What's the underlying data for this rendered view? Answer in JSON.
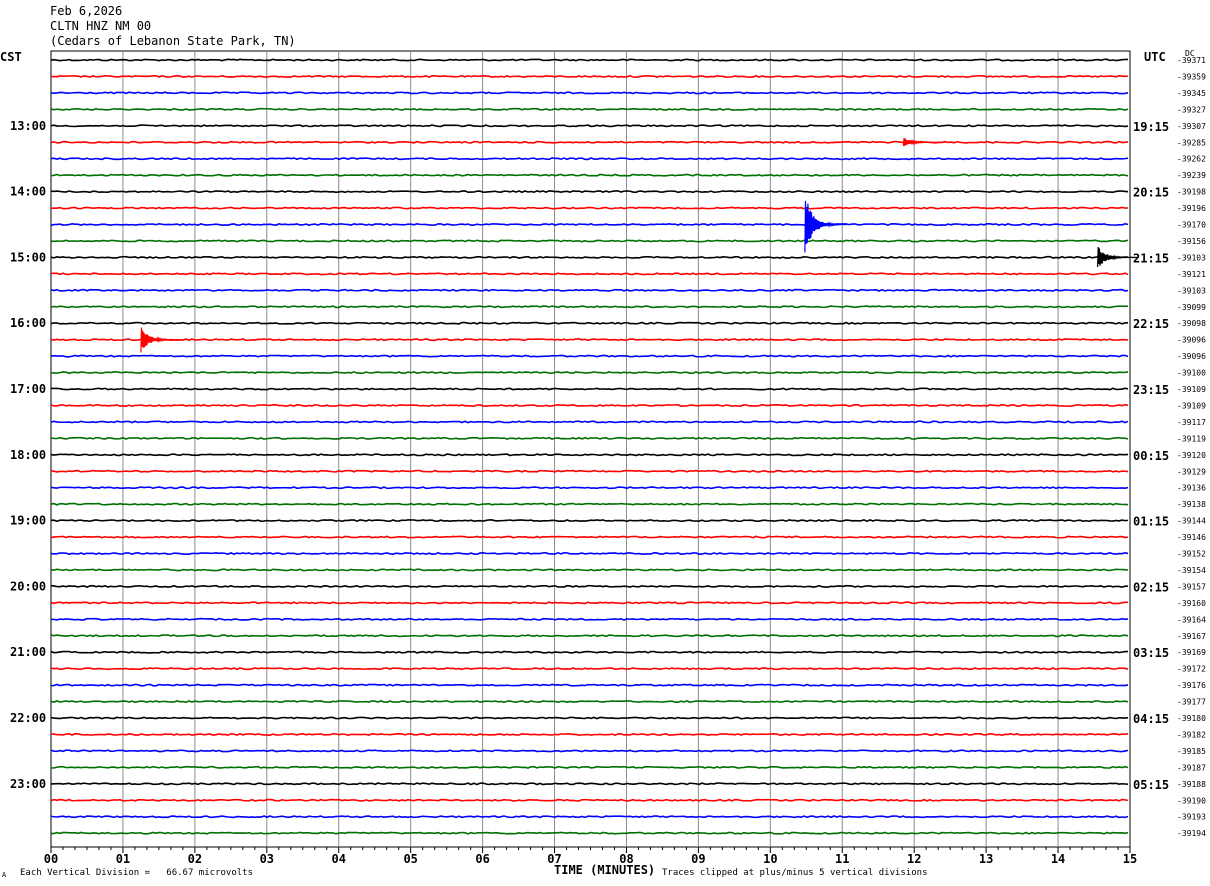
{
  "header": {
    "date": "Feb 6,2026",
    "station": "CLTN HNZ NM 00",
    "location": "(Cedars of Lebanon State Park, TN)"
  },
  "left_tz": "CST",
  "right_tz": "UTC",
  "dc_label": "DC",
  "footer": {
    "left_mark": "A",
    "scale": "Each Vertical Division =   66.67 microvolts",
    "xlabel": "TIME (MINUTES)",
    "clip_note": "Traces clipped at plus/minus 5 vertical divisions"
  },
  "chart_data": {
    "type": "line",
    "title": "",
    "xlabel": "TIME (MINUTES)",
    "ylabel": "",
    "x_range": [
      0,
      15
    ],
    "x_ticks": [
      "00",
      "01",
      "02",
      "03",
      "04",
      "05",
      "06",
      "07",
      "08",
      "09",
      "10",
      "11",
      "12",
      "13",
      "14",
      "15"
    ],
    "trace_count": 48,
    "trace_minutes": 15,
    "trace_colors": [
      "#000000",
      "#ff0000",
      "#0000ff",
      "#007000"
    ],
    "left_time_labels": [
      "13:00",
      "14:00",
      "15:00",
      "16:00",
      "17:00",
      "18:00",
      "19:00",
      "20:00",
      "21:00",
      "22:00",
      "23:00"
    ],
    "right_time_labels": [
      "19:15",
      "20:15",
      "21:15",
      "22:15",
      "23:15",
      "00:15",
      "01:15",
      "02:15",
      "03:15",
      "04:15",
      "05:15"
    ],
    "dc_offsets": [
      "-39371",
      "-39359",
      "-39345",
      "-39327",
      "-39307",
      "-39285",
      "-39262",
      "-39239",
      "-39198",
      "-39196",
      "-39170",
      "-39156",
      "-39103",
      "-39121",
      "-39103",
      "-39099",
      "-39098",
      "-39096",
      "-39096",
      "-39100",
      "-39109",
      "-39109",
      "-39117",
      "-39119",
      "-39120",
      "-39129",
      "-39136",
      "-39138",
      "-39144",
      "-39146",
      "-39152",
      "-39154",
      "-39157",
      "-39160",
      "-39164",
      "-39167",
      "-39169",
      "-39172",
      "-39176",
      "-39177",
      "-39180",
      "-39182",
      "-39185",
      "-39187",
      "-39188",
      "-39190",
      "-39193",
      "-39194"
    ],
    "events": [
      {
        "trace": 5,
        "minute": 11.85,
        "amplitude": 5,
        "color": "#ff0000"
      },
      {
        "trace": 10,
        "minute": 10.48,
        "amplitude": 34,
        "color": "#0000ff"
      },
      {
        "trace": 12,
        "minute": 14.55,
        "amplitude": 12,
        "color": "#000000"
      },
      {
        "trace": 17,
        "minute": 1.25,
        "amplitude": 14,
        "color": "#ff0000"
      }
    ]
  }
}
